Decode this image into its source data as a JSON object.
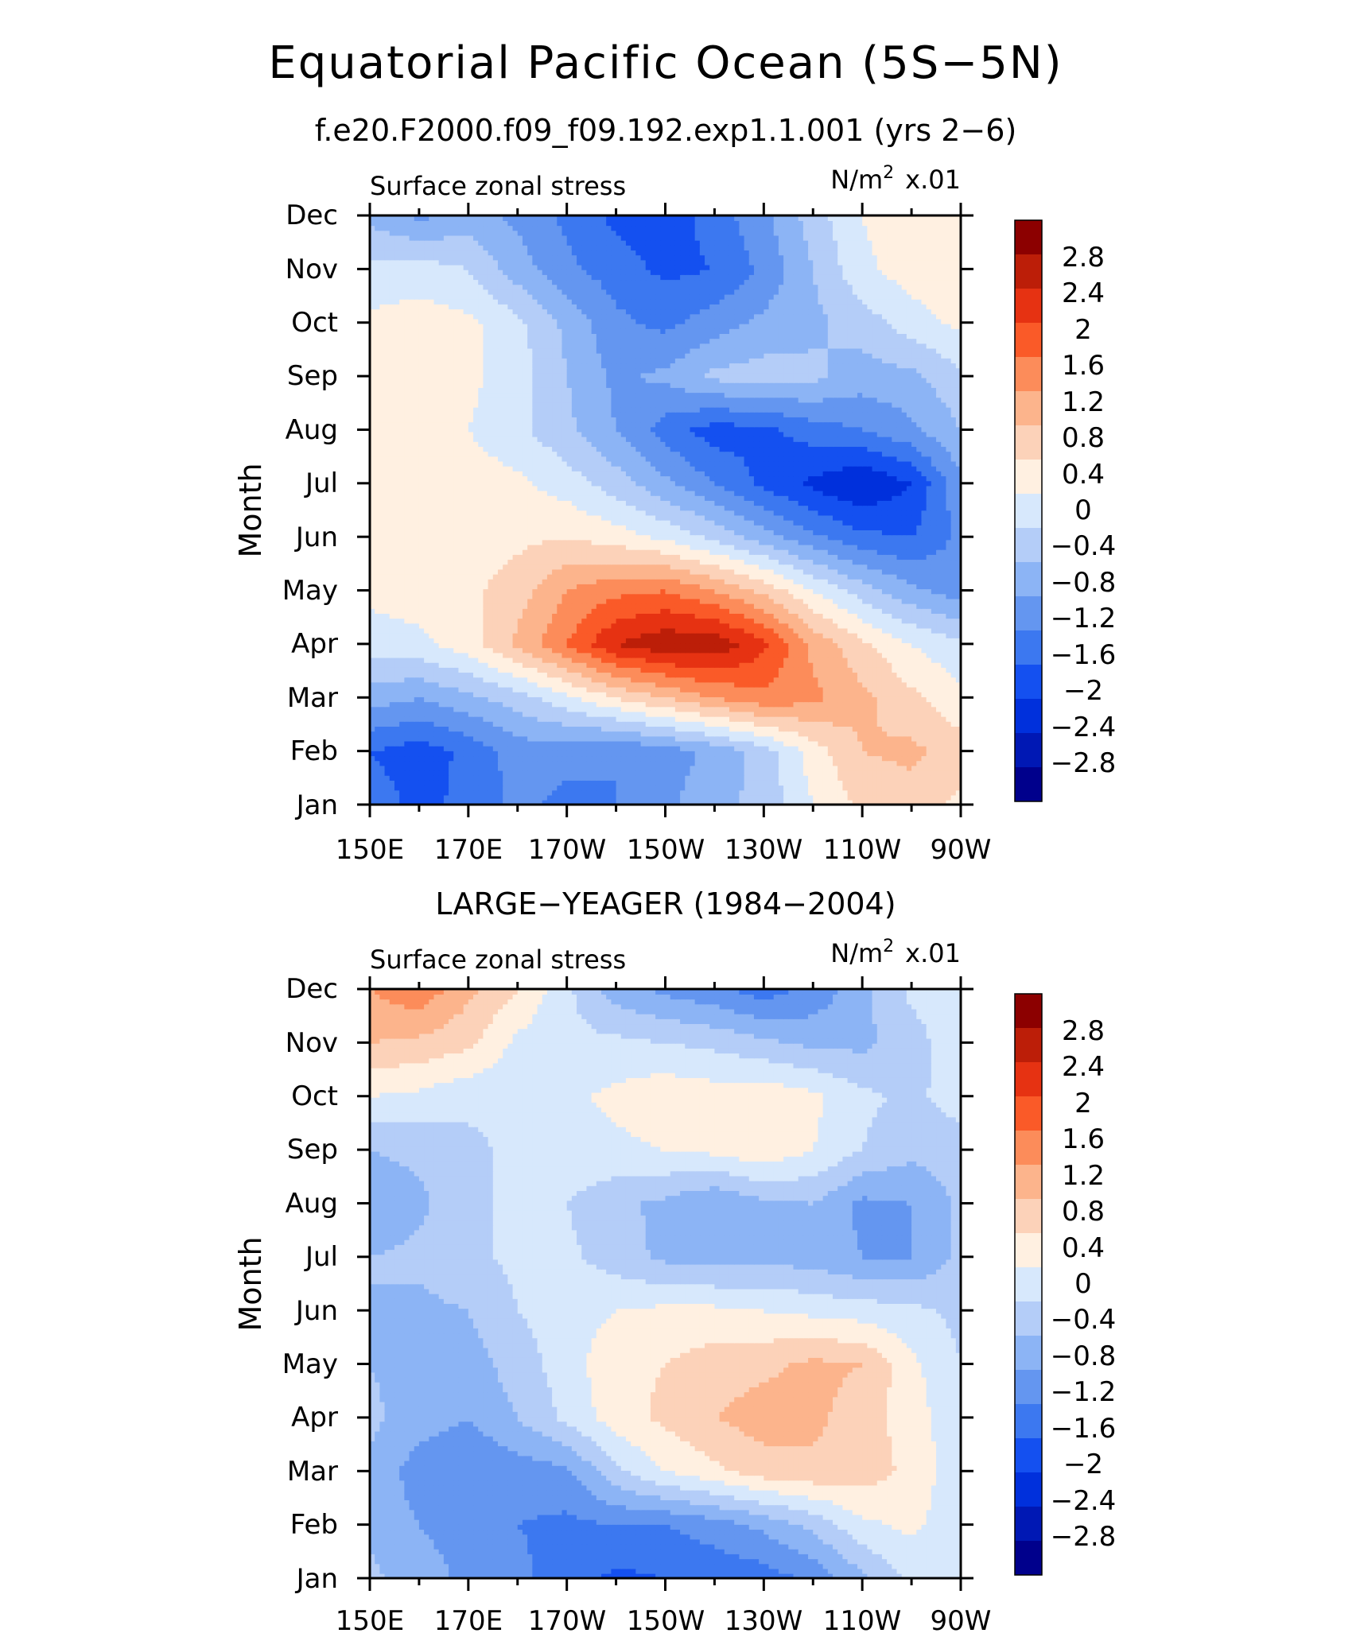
{
  "main_title": "Equatorial Pacific Ocean (5S−5N)",
  "colors": [
    "#00008c",
    "#0018b4",
    "#0030dc",
    "#1450f0",
    "#3c78f0",
    "#6496f0",
    "#8cb4f5",
    "#b4cdf8",
    "#d7e8fc",
    "#fff0e1",
    "#fcd2b9",
    "#fcb48c",
    "#fc8c5a",
    "#fa5a28",
    "#e63212",
    "#bc1e08",
    "#8c0000"
  ],
  "chart_data": [
    {
      "type": "contour-heatmap",
      "title": "f.e20.F2000.f09_f09.192.exp1.1.001 (yrs 2−6)",
      "left_label": "Surface zonal stress",
      "right_label_base": "N/m",
      "right_label_sup": "2",
      "right_label_scale": "x.01",
      "ylabel": "Month",
      "y_categories": [
        "Jan",
        "Feb",
        "Mar",
        "Apr",
        "May",
        "Jun",
        "Jul",
        "Aug",
        "Sep",
        "Oct",
        "Nov",
        "Dec"
      ],
      "x_tick_labels": [
        "150E",
        "170E",
        "170W",
        "150W",
        "130W",
        "110W",
        "90W"
      ],
      "x_tick_values": [
        150,
        170,
        190,
        210,
        230,
        250,
        270
      ],
      "xlim": [
        150,
        270
      ],
      "ylim": [
        1,
        12
      ],
      "z_levels": [
        -3.2,
        -2.8,
        -2.4,
        -2,
        -1.6,
        -1.2,
        -0.8,
        -0.4,
        0,
        0.4,
        0.8,
        1.2,
        1.6,
        2,
        2.4,
        2.8,
        3.2
      ],
      "colorbar_labels": [
        "2.8",
        "2.4",
        "2",
        "1.6",
        "1.2",
        "0.8",
        "0.4",
        "0",
        "−0.4",
        "−0.8",
        "−1.2",
        "−1.6",
        "−2",
        "−2.4",
        "−2.8"
      ],
      "x_grid": [
        150,
        160,
        170,
        180,
        190,
        200,
        210,
        220,
        230,
        240,
        250,
        260,
        270
      ],
      "z_grid": [
        [
          -1.4,
          -1.7,
          -1.5,
          -1.1,
          -1.3,
          -1.2,
          -0.9,
          -0.5,
          -0.3,
          0.4,
          0.9,
          1.0,
          0.7
        ],
        [
          -1.6,
          -1.8,
          -1.5,
          -1.0,
          -1.1,
          -1.2,
          -1.0,
          -0.7,
          -0.2,
          0.6,
          1.2,
          1.3,
          1.0
        ],
        [
          -0.6,
          -0.8,
          -0.5,
          -0.2,
          0.3,
          0.8,
          1.2,
          1.6,
          1.9,
          1.7,
          1.3,
          0.9,
          0.5
        ],
        [
          0.2,
          0.3,
          0.6,
          1.3,
          2.0,
          2.8,
          3.1,
          3.1,
          2.5,
          1.5,
          0.9,
          0.4,
          0.1
        ],
        [
          0.5,
          0.6,
          0.7,
          1.0,
          1.6,
          1.9,
          2.0,
          1.6,
          1.1,
          0.4,
          -0.2,
          -0.7,
          -1.0
        ],
        [
          0.7,
          0.6,
          0.6,
          0.7,
          0.8,
          0.6,
          0.3,
          -0.1,
          -0.6,
          -1.1,
          -1.5,
          -1.6,
          -1.1
        ],
        [
          0.6,
          0.5,
          0.6,
          0.5,
          0.2,
          -0.2,
          -0.7,
          -1.2,
          -1.7,
          -2.1,
          -2.4,
          -2.0,
          -0.9
        ],
        [
          0.5,
          0.5,
          0.4,
          0.1,
          -0.3,
          -0.8,
          -1.4,
          -1.8,
          -1.7,
          -1.4,
          -1.2,
          -0.9,
          -0.4
        ],
        [
          0.6,
          0.6,
          0.5,
          0.2,
          -0.4,
          -0.9,
          -0.7,
          -0.3,
          -0.2,
          -0.3,
          -0.6,
          -0.5,
          -0.1
        ],
        [
          0.5,
          0.6,
          0.5,
          0.1,
          -0.5,
          -1.1,
          -1.3,
          -1.0,
          -0.7,
          -0.5,
          -0.2,
          0.2,
          0.5
        ],
        [
          0.1,
          0.2,
          0.0,
          -0.6,
          -1.1,
          -1.4,
          -1.7,
          -1.6,
          -1.1,
          -0.4,
          0.3,
          0.6,
          0.7
        ],
        [
          -0.5,
          -0.9,
          -0.6,
          -0.9,
          -1.3,
          -1.7,
          -1.9,
          -1.4,
          -0.9,
          -0.2,
          0.4,
          0.7,
          0.6
        ]
      ]
    },
    {
      "type": "contour-heatmap",
      "title": "LARGE−YEAGER (1984−2004)",
      "left_label": "Surface zonal stress",
      "right_label_base": "N/m",
      "right_label_sup": "2",
      "right_label_scale": "x.01",
      "ylabel": "Month",
      "y_categories": [
        "Jan",
        "Feb",
        "Mar",
        "Apr",
        "May",
        "Jun",
        "Jul",
        "Aug",
        "Sep",
        "Oct",
        "Nov",
        "Dec"
      ],
      "x_tick_labels": [
        "150E",
        "170E",
        "170W",
        "150W",
        "130W",
        "110W",
        "90W"
      ],
      "x_tick_values": [
        150,
        170,
        190,
        210,
        230,
        250,
        270
      ],
      "xlim": [
        150,
        270
      ],
      "ylim": [
        1,
        12
      ],
      "z_levels": [
        -3.2,
        -2.8,
        -2.4,
        -2,
        -1.6,
        -1.2,
        -0.8,
        -0.4,
        0,
        0.4,
        0.8,
        1.2,
        1.6,
        2,
        2.4,
        2.8,
        3.2
      ],
      "colorbar_labels": [
        "2.8",
        "2.4",
        "2",
        "1.6",
        "1.2",
        "0.8",
        "0.4",
        "0",
        "−0.4",
        "−0.8",
        "−1.2",
        "−1.6",
        "−2",
        "−2.4",
        "−2.8"
      ],
      "x_grid": [
        150,
        160,
        170,
        180,
        190,
        200,
        210,
        220,
        230,
        240,
        250,
        260,
        270
      ],
      "z_grid": [
        [
          -0.3,
          -0.6,
          -0.9,
          -1.1,
          -1.4,
          -1.7,
          -1.6,
          -1.5,
          -1.4,
          -1.1,
          -0.5,
          0.1,
          0.1
        ],
        [
          -0.5,
          -0.8,
          -1.0,
          -1.2,
          -1.3,
          -1.2,
          -1.2,
          -1.0,
          -0.7,
          -0.3,
          0.3,
          0.5,
          0.1
        ],
        [
          -0.5,
          -1.0,
          -1.2,
          -1.0,
          -0.9,
          -0.1,
          0.4,
          0.7,
          1.0,
          1.1,
          1.0,
          0.7,
          0.1
        ],
        [
          -0.3,
          -0.6,
          -0.8,
          -0.4,
          0.1,
          0.6,
          0.9,
          1.2,
          1.4,
          1.3,
          1.0,
          0.6,
          0.1
        ],
        [
          -0.4,
          -0.6,
          -0.6,
          -0.2,
          0.2,
          0.7,
          0.8,
          1.0,
          1.1,
          1.3,
          1.2,
          0.5,
          0.0
        ],
        [
          -0.4,
          -0.5,
          -0.4,
          0.0,
          0.2,
          0.4,
          0.5,
          0.5,
          0.4,
          0.3,
          0.2,
          0.1,
          -0.1
        ],
        [
          -0.4,
          -0.3,
          -0.1,
          0.1,
          0.1,
          -0.2,
          -0.5,
          -0.6,
          -0.5,
          -0.6,
          -0.8,
          -0.8,
          -0.3
        ],
        [
          -0.7,
          -0.5,
          -0.1,
          0.1,
          0.0,
          -0.3,
          -0.5,
          -0.8,
          -0.5,
          -0.4,
          -0.9,
          -0.8,
          -0.3
        ],
        [
          -0.4,
          -0.3,
          -0.1,
          0.1,
          0.3,
          0.3,
          0.4,
          0.5,
          0.7,
          0.4,
          0.0,
          -0.3,
          -0.2
        ],
        [
          0.4,
          0.3,
          0.1,
          0.1,
          0.3,
          0.5,
          0.7,
          0.6,
          0.7,
          0.5,
          0.1,
          -0.1,
          0.2
        ],
        [
          1.2,
          1.1,
          0.9,
          0.3,
          0.1,
          0.1,
          0.0,
          -0.1,
          -0.3,
          -0.5,
          -0.5,
          -0.2,
          0.3
        ],
        [
          1.6,
          1.9,
          1.3,
          0.8,
          0.1,
          -0.6,
          -0.9,
          -1.1,
          -1.4,
          -1.1,
          -0.5,
          0.1,
          0.3
        ]
      ]
    }
  ]
}
